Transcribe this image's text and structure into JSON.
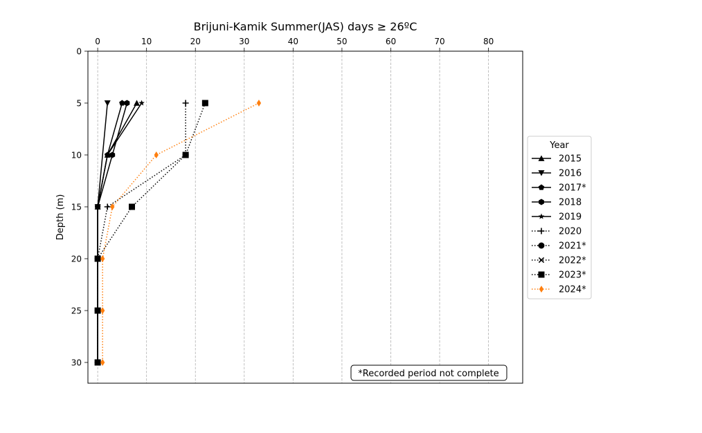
{
  "chart_data": {
    "type": "line",
    "title": "Brijuni-Kamik Summer(JAS) days ≥ 26ºC",
    "xlabel": "",
    "ylabel": "Depth (m)",
    "xlim": [
      -2,
      87
    ],
    "ylim": [
      32,
      0
    ],
    "x_axis_position": "top",
    "y_inverted": true,
    "xticks": [
      0,
      10,
      20,
      30,
      40,
      50,
      60,
      70,
      80
    ],
    "yticks": [
      0,
      5,
      10,
      15,
      20,
      25,
      30
    ],
    "grid": "vertical dashed",
    "legend": {
      "title": "Year",
      "placement": "right-outside"
    },
    "annotation": "*Recorded period not complete",
    "series": [
      {
        "name": "2015",
        "marker": "triangle-up",
        "linestyle": "solid",
        "color": "#000000",
        "points": [
          {
            "x": 8,
            "y": 5
          },
          {
            "x": 2,
            "y": 10
          },
          {
            "x": 0,
            "y": 15
          },
          {
            "x": 0,
            "y": 20
          },
          {
            "x": 0,
            "y": 25
          },
          {
            "x": 0,
            "y": 30
          }
        ]
      },
      {
        "name": "2016",
        "marker": "triangle-down",
        "linestyle": "solid",
        "color": "#000000",
        "points": [
          {
            "x": 2,
            "y": 5
          },
          {
            "x": 0,
            "y": 15
          },
          {
            "x": 0,
            "y": 20
          },
          {
            "x": 0,
            "y": 25
          },
          {
            "x": 0,
            "y": 30
          }
        ]
      },
      {
        "name": "2017*",
        "marker": "pentagon",
        "linestyle": "solid",
        "color": "#000000",
        "points": [
          {
            "x": 5,
            "y": 5
          },
          {
            "x": 2,
            "y": 10
          },
          {
            "x": 0,
            "y": 15
          },
          {
            "x": 0,
            "y": 20
          },
          {
            "x": 0,
            "y": 25
          },
          {
            "x": 0,
            "y": 30
          }
        ]
      },
      {
        "name": "2018",
        "marker": "hexagon",
        "linestyle": "solid",
        "color": "#000000",
        "points": [
          {
            "x": 6,
            "y": 5
          },
          {
            "x": 3,
            "y": 10
          },
          {
            "x": 0,
            "y": 15
          },
          {
            "x": 0,
            "y": 20
          },
          {
            "x": 0,
            "y": 25
          },
          {
            "x": 0,
            "y": 30
          }
        ]
      },
      {
        "name": "2019",
        "marker": "star",
        "linestyle": "solid",
        "color": "#000000",
        "points": [
          {
            "x": 9,
            "y": 5
          },
          {
            "x": 2,
            "y": 10
          },
          {
            "x": 0,
            "y": 15
          },
          {
            "x": 0,
            "y": 20
          },
          {
            "x": 0,
            "y": 25
          },
          {
            "x": 0,
            "y": 30
          }
        ]
      },
      {
        "name": "2020",
        "marker": "plus",
        "linestyle": "dotted",
        "color": "#000000",
        "points": [
          {
            "x": 18,
            "y": 5
          },
          {
            "x": 18,
            "y": 10
          },
          {
            "x": 2,
            "y": 15
          },
          {
            "x": 0,
            "y": 20
          },
          {
            "x": 0,
            "y": 25
          },
          {
            "x": 0,
            "y": 30
          }
        ]
      },
      {
        "name": "2021*",
        "marker": "circle",
        "linestyle": "dotted",
        "color": "#000000",
        "points": []
      },
      {
        "name": "2022*",
        "marker": "x",
        "linestyle": "dotted",
        "color": "#000000",
        "points": []
      },
      {
        "name": "2023*",
        "marker": "square",
        "linestyle": "dotted",
        "color": "#000000",
        "points": [
          {
            "x": 22,
            "y": 5
          },
          {
            "x": 18,
            "y": 10
          },
          {
            "x": 7,
            "y": 15
          },
          {
            "x": 0,
            "y": 20
          },
          {
            "x": 0,
            "y": 25
          },
          {
            "x": 0,
            "y": 30
          }
        ]
      },
      {
        "name": "2024*",
        "marker": "thin-diamond",
        "linestyle": "dotted",
        "color": "#ff7f0e",
        "points": [
          {
            "x": 33,
            "y": 5
          },
          {
            "x": 12,
            "y": 10
          },
          {
            "x": 3,
            "y": 15
          },
          {
            "x": 1,
            "y": 20
          },
          {
            "x": 1,
            "y": 25
          },
          {
            "x": 1,
            "y": 30
          }
        ]
      }
    ]
  }
}
